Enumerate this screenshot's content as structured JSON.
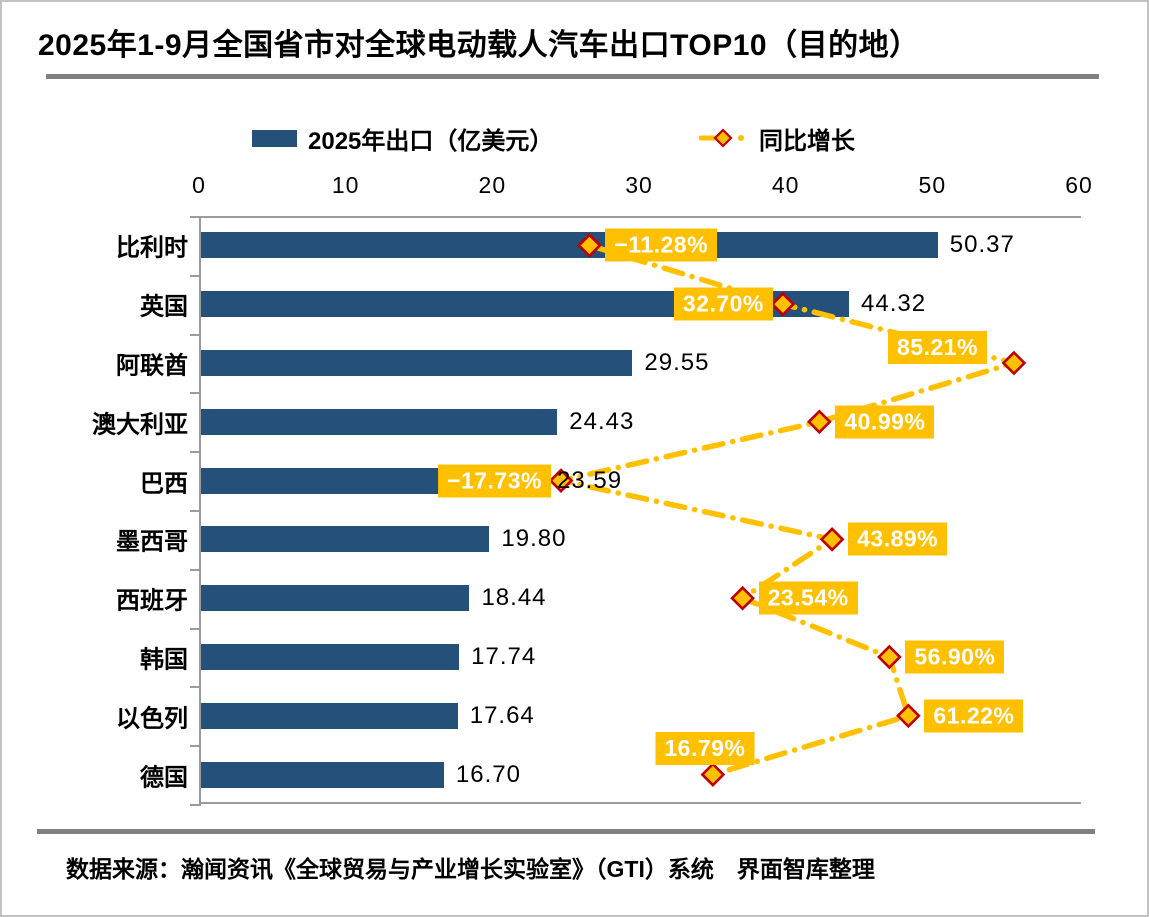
{
  "header": {
    "title": "2025年1-9月全国省市对全球电动载人汽车出口TOP10（目的地）"
  },
  "legend": {
    "bars": "2025年出口（亿美元）",
    "line": "同比增长"
  },
  "footer": {
    "source": "数据来源：瀚闻资讯《全球贸易与产业增长实验室》（GTI）系统　界面智库整理"
  },
  "colors": {
    "bar": "#25507A",
    "gold": "#FFC000",
    "marker_border": "#C00000",
    "axis": "#9B9B9B",
    "divider": "#808080",
    "label_text": "#FFFFFF",
    "text": "#000000"
  },
  "chart_data": {
    "type": "bar",
    "orientation": "horizontal",
    "title": "2025年1-9月全国省市对全球电动载人汽车出口TOP10（目的地）",
    "categories": [
      "比利时",
      "英国",
      "阿联酋",
      "澳大利亚",
      "巴西",
      "墨西哥",
      "西班牙",
      "韩国",
      "以色列",
      "德国"
    ],
    "series": [
      {
        "name": "2025年出口（亿美元）",
        "type": "bar",
        "values": [
          50.37,
          44.32,
          29.55,
          24.43,
          23.59,
          19.8,
          18.44,
          17.74,
          17.64,
          16.7
        ]
      },
      {
        "name": "同比增长",
        "type": "line",
        "unit": "%",
        "values": [
          -11.28,
          32.7,
          85.21,
          40.99,
          -17.73,
          43.89,
          23.54,
          56.9,
          61.22,
          16.79
        ]
      }
    ],
    "bar_value_labels": [
      "50.37",
      "44.32",
      "29.55",
      "24.43",
      "23.59",
      "19.80",
      "18.44",
      "17.74",
      "17.64",
      "16.70"
    ],
    "growth_labels": [
      "−11.28%",
      "32.70%",
      "85.21%",
      "40.99%",
      "−17.73%",
      "43.89%",
      "23.54%",
      "56.90%",
      "61.22%",
      "16.79%"
    ],
    "growth_label_pos": [
      "right",
      "left",
      "above-left",
      "right",
      "left",
      "right",
      "right",
      "right",
      "right",
      "above"
    ],
    "xlabel": "",
    "ylabel": "",
    "x_axis": {
      "position": "top",
      "range": [
        0,
        60
      ],
      "ticks": [
        0,
        10,
        20,
        30,
        40,
        50,
        60
      ]
    },
    "growth_axis_range": [
      -100,
      100
    ],
    "grid": false,
    "legend_position": "top"
  }
}
